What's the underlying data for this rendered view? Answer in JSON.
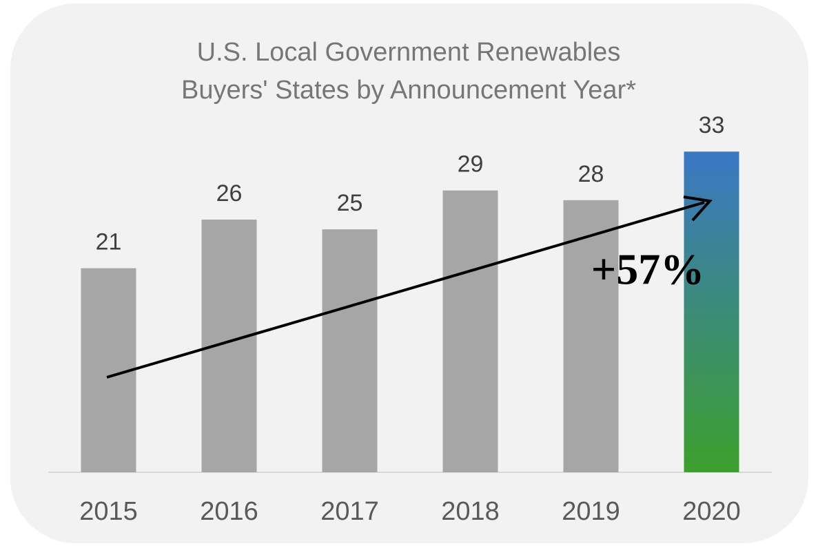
{
  "chart_data": {
    "type": "bar",
    "title": [
      "U.S. Local Government Renewables",
      "Buyers' States by Announcement Year*"
    ],
    "annotation": "+57%",
    "categories": [
      "2015",
      "2016",
      "2017",
      "2018",
      "2019",
      "2020"
    ],
    "values": [
      21,
      26,
      25,
      29,
      28,
      33
    ],
    "colors": [
      "#a6a6a6",
      "#a6a6a6",
      "#a6a6a6",
      "#a6a6a6",
      "#a6a6a6",
      [
        "#3a78c4",
        "#3ca02c"
      ]
    ],
    "ylim": [
      0,
      35
    ]
  }
}
